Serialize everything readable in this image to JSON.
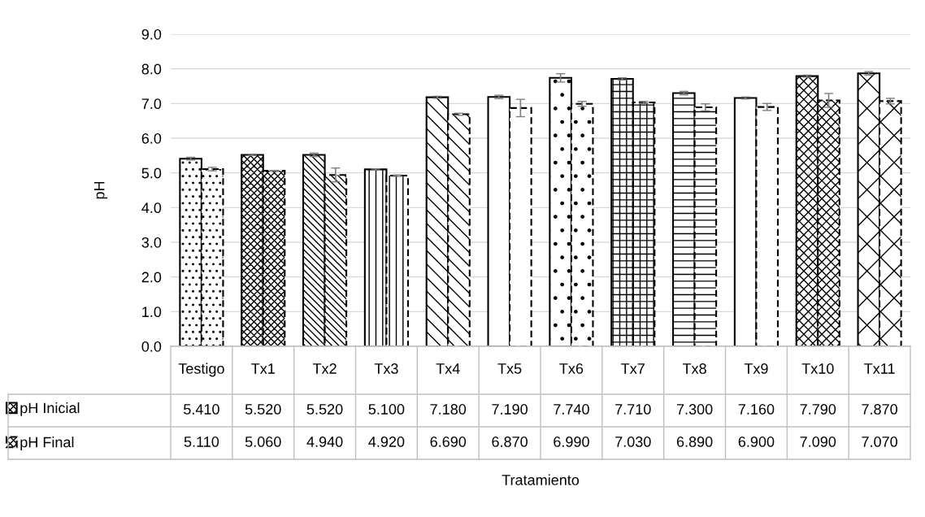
{
  "chart_data": {
    "type": "bar",
    "annotations": [
      "Tratamiento"
    ],
    "ylabel": "pH",
    "categories": [
      "Testigo",
      "Tx1",
      "Tx2",
      "Tx3",
      "Tx4",
      "Tx5",
      "Tx6",
      "Tx7",
      "Tx8",
      "Tx9",
      "Tx10",
      "Tx11"
    ],
    "series": [
      {
        "name": "pH Inicial",
        "color": "#000000",
        "line_style": "solid",
        "values": [
          5.41,
          5.52,
          5.52,
          5.1,
          7.18,
          7.19,
          7.74,
          7.71,
          7.3,
          7.16,
          7.79,
          7.87
        ],
        "errors": [
          0.04,
          0.02,
          0.05,
          0.02,
          0.03,
          0.05,
          0.12,
          0.03,
          0.05,
          0.03,
          0.03,
          0.05
        ],
        "value_labels": [
          "5.410",
          "5.520",
          "5.520",
          "5.100",
          "7.180",
          "7.190",
          "7.740",
          "7.710",
          "7.300",
          "7.160",
          "7.790",
          "7.870"
        ]
      },
      {
        "name": "pH Final",
        "color": "#000000",
        "line_style": "dashed",
        "values": [
          5.11,
          5.06,
          4.94,
          4.92,
          6.69,
          6.87,
          6.99,
          7.03,
          6.89,
          6.9,
          7.09,
          7.07
        ],
        "errors": [
          0.05,
          0.01,
          0.2,
          0.02,
          0.03,
          0.25,
          0.07,
          0.03,
          0.1,
          0.1,
          0.2,
          0.08
        ],
        "value_labels": [
          "5.110",
          "5.060",
          "4.940",
          "4.920",
          "6.690",
          "6.870",
          "6.990",
          "7.030",
          "6.890",
          "6.900",
          "7.090",
          "7.070"
        ]
      }
    ],
    "ylim": [
      0,
      9
    ],
    "yticks": [
      {
        "value": 0,
        "label": "0.0"
      },
      {
        "value": 1,
        "label": "1.0"
      },
      {
        "value": 2,
        "label": "2.0"
      },
      {
        "value": 3,
        "label": "3.0"
      },
      {
        "value": 4,
        "label": "4.0"
      },
      {
        "value": 5,
        "label": "5.0"
      },
      {
        "value": 6,
        "label": "6.0"
      },
      {
        "value": 7,
        "label": "7.0"
      },
      {
        "value": 8,
        "label": "8.0"
      },
      {
        "value": 9,
        "label": "9.0"
      }
    ],
    "grid": "y",
    "legend": "bottom"
  }
}
